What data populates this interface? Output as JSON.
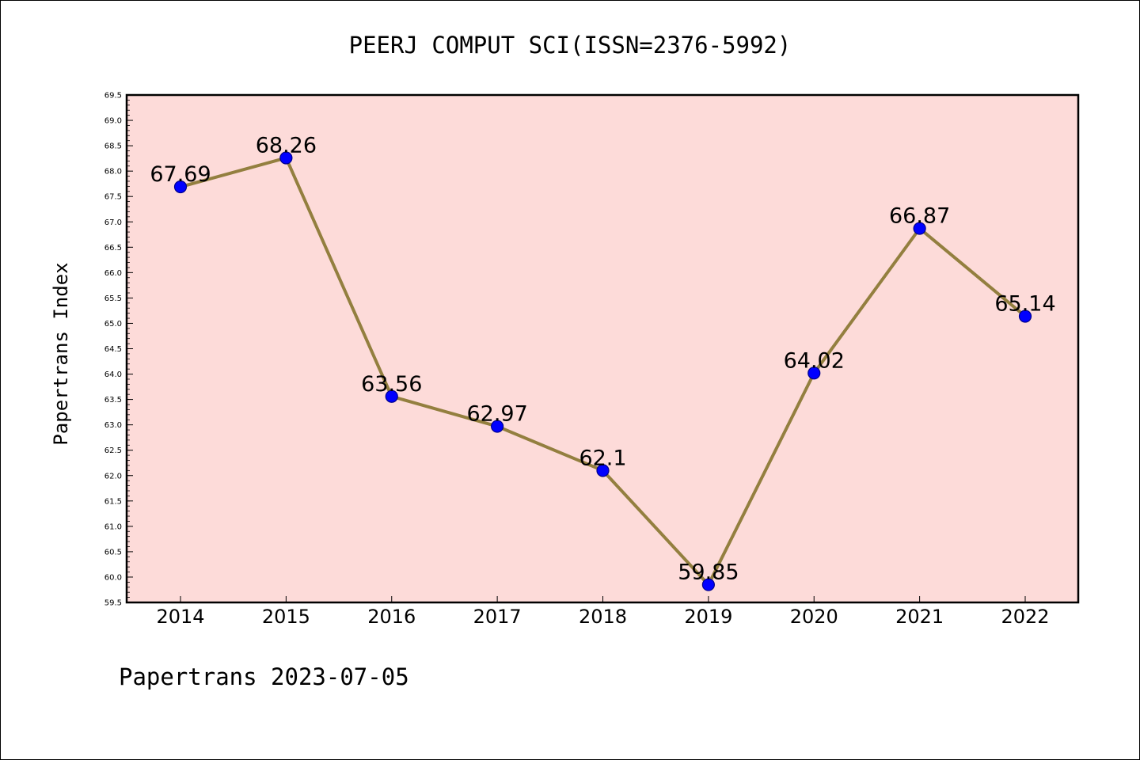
{
  "chart_data": {
    "type": "line",
    "title": "PEERJ COMPUT SCI(ISSN=2376-5992)",
    "xlabel": "",
    "ylabel": "Papertrans Index",
    "categories": [
      "2014",
      "2015",
      "2016",
      "2017",
      "2018",
      "2019",
      "2020",
      "2021",
      "2022"
    ],
    "values": [
      67.69,
      68.26,
      63.56,
      62.97,
      62.1,
      59.85,
      64.02,
      66.87,
      65.14
    ],
    "data_labels": [
      "67.69",
      "68.26",
      "63.56",
      "62.97",
      "62.1",
      "59.85",
      "64.02",
      "66.87",
      "65.14"
    ],
    "ylim": [
      59.5,
      69.5
    ],
    "yticks": [
      "59.5",
      "60.0",
      "60.5",
      "61.0",
      "61.5",
      "62.0",
      "62.5",
      "63.0",
      "63.5",
      "64.0",
      "64.5",
      "65.0",
      "65.5",
      "66.0",
      "66.5",
      "67.0",
      "67.5",
      "68.0",
      "68.5",
      "69.0",
      "69.5"
    ],
    "grid": false,
    "colors": {
      "plot_background": "#fddbd9",
      "line": "#937f3f",
      "marker_fill": "#0000ff",
      "marker_edge": "#00008b",
      "axis": "#000000"
    }
  },
  "footer": "Papertrans 2023-07-05"
}
